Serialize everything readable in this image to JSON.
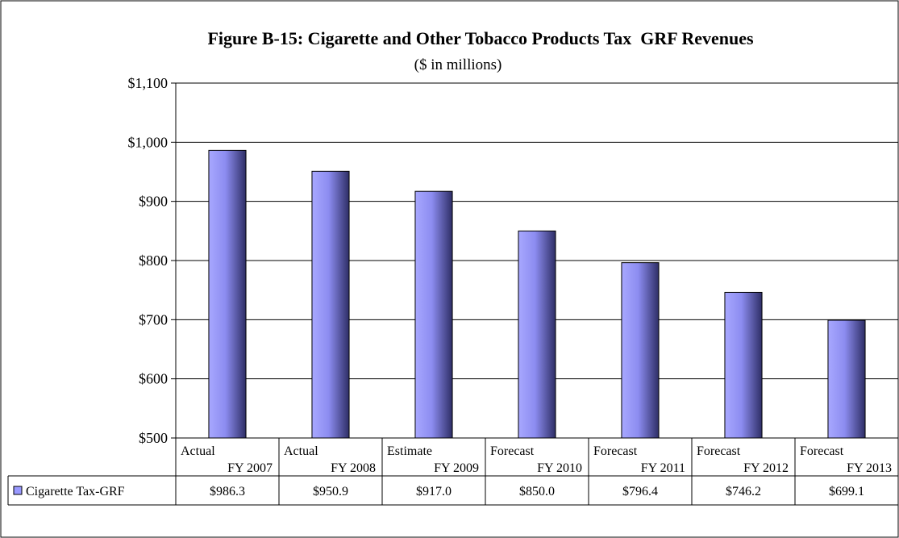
{
  "chart_data": {
    "type": "bar",
    "title": "Figure B-15: Cigarette and Other Tobacco Products Tax  GRF Revenues",
    "subtitle": "($ in millions)",
    "categories": [
      {
        "label": "Actual",
        "sublabel": "FY 2007"
      },
      {
        "label": "Actual",
        "sublabel": "FY 2008"
      },
      {
        "label": "Estimate",
        "sublabel": "FY 2009"
      },
      {
        "label": "Forecast",
        "sublabel": "FY 2010"
      },
      {
        "label": "Forecast",
        "sublabel": "FY 2011"
      },
      {
        "label": "Forecast",
        "sublabel": "FY 2012"
      },
      {
        "label": "Forecast",
        "sublabel": "FY 2013"
      }
    ],
    "series": [
      {
        "name": "Cigarette Tax-GRF",
        "values": [
          986.3,
          950.9,
          917.0,
          850.0,
          796.4,
          746.2,
          699.1
        ],
        "value_labels": [
          "$986.3",
          "$950.9",
          "$917.0",
          "$850.0",
          "$796.4",
          "$746.2",
          "$699.1"
        ],
        "color": "#9999FF"
      }
    ],
    "ylim": [
      500,
      1100
    ],
    "yticks": [
      500,
      600,
      700,
      800,
      900,
      1000,
      1100
    ],
    "ytick_labels": [
      "$500",
      "$600",
      "$700",
      "$800",
      "$900",
      "$1,000",
      "$1,100"
    ],
    "grid": true,
    "legend": "data-table"
  }
}
